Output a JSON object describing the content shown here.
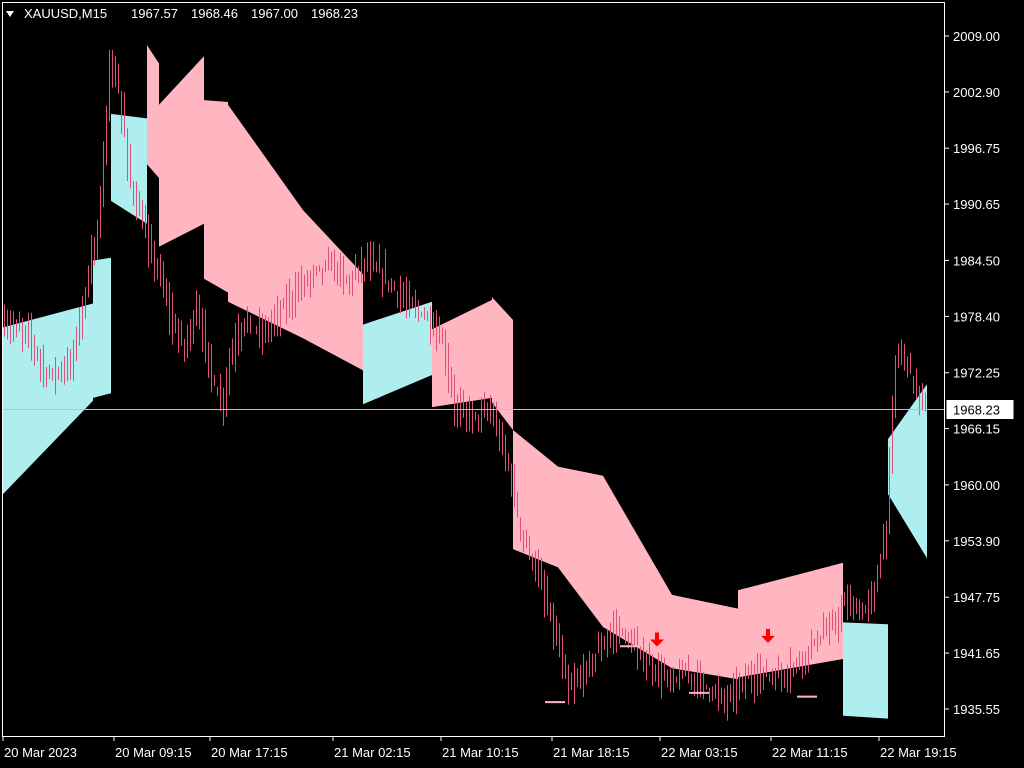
{
  "header": {
    "symbol": "XAUUSD,M15",
    "open": "1967.57",
    "high": "1968.46",
    "low": "1967.00",
    "close": "1968.23",
    "menu_icon": "triangle-down-icon"
  },
  "chart_data": {
    "type": "candlestick-with-band",
    "title": "",
    "xlabel": "",
    "ylabel": "",
    "ylim": [
      1932.6,
      2012.6
    ],
    "grid": false,
    "current_price": 1968.23,
    "current_price_label": "1968.23",
    "y_ticks": [
      "2009.00",
      "2002.90",
      "1996.75",
      "1990.65",
      "1984.50",
      "1978.40",
      "1972.25",
      "1966.15",
      "1960.00",
      "1953.90",
      "1947.75",
      "1941.65",
      "1935.55"
    ],
    "x_ticks": [
      "20 Mar 2023",
      "20 Mar 09:15",
      "20 Mar 17:15",
      "21 Mar 02:15",
      "21 Mar 10:15",
      "21 Mar 18:15",
      "22 Mar 03:15",
      "22 Mar 11:15",
      "22 Mar 19:15"
    ],
    "x_tick_index": [
      0,
      37,
      69,
      110,
      146,
      183,
      219,
      256,
      292
    ],
    "bar_count": 308,
    "colors": {
      "up_band": "#afeeee",
      "down_band": "#ffb6c1",
      "candle": "#e0507a",
      "signal": "#ff0000",
      "level": "#ffb6c1"
    },
    "band_segments": [
      {
        "trend": "up",
        "start": 0,
        "end": 30,
        "upper": [
          1977.2,
          1979.8
        ],
        "lower": [
          1959.0,
          1969.2
        ]
      },
      {
        "trend": "up",
        "start": 30,
        "end": 36,
        "upper": [
          1984.5,
          1984.8
        ],
        "lower": [
          1969.5,
          1970.0
        ]
      },
      {
        "trend": "up",
        "start": 36,
        "end": 48,
        "upper": [
          2000.5,
          2000.0
        ],
        "lower": [
          1991.0,
          1988.5
        ]
      },
      {
        "trend": "down",
        "start": 48,
        "end": 52,
        "upper": [
          2008.0,
          2006.0
        ],
        "lower": [
          1995.0,
          1993.5
        ]
      },
      {
        "trend": "down",
        "start": 52,
        "end": 67,
        "upper": [
          2001.5,
          2006.8
        ],
        "lower": [
          1986.0,
          1988.5
        ]
      },
      {
        "trend": "down",
        "start": 67,
        "end": 75,
        "upper": [
          2002.0,
          2001.8
        ],
        "lower": [
          1982.5,
          1981.0
        ]
      },
      {
        "trend": "down",
        "start": 75,
        "end": 100,
        "upper": [
          2001.5,
          1990.0
        ],
        "lower": [
          1980.0,
          1976.0
        ]
      },
      {
        "trend": "down",
        "start": 100,
        "end": 120,
        "upper": [
          1990.0,
          1983.0
        ],
        "lower": [
          1976.0,
          1972.5
        ]
      },
      {
        "trend": "up",
        "start": 120,
        "end": 143,
        "upper": [
          1977.5,
          1980.0
        ],
        "lower": [
          1968.8,
          1972.0
        ]
      },
      {
        "trend": "down",
        "start": 143,
        "end": 163,
        "upper": [
          1977.0,
          1980.2
        ],
        "lower": [
          1968.5,
          1969.5
        ]
      },
      {
        "trend": "down",
        "start": 163,
        "end": 170,
        "upper": [
          1980.5,
          1978.0
        ],
        "lower": [
          1969.0,
          1966.0
        ]
      },
      {
        "trend": "down",
        "start": 170,
        "end": 185,
        "upper": [
          1966.0,
          1962.0
        ],
        "lower": [
          1953.0,
          1951.0
        ]
      },
      {
        "trend": "down",
        "start": 185,
        "end": 200,
        "upper": [
          1962.0,
          1961.0
        ],
        "lower": [
          1951.0,
          1944.5
        ]
      },
      {
        "trend": "down",
        "start": 200,
        "end": 223,
        "upper": [
          1961.0,
          1948.0
        ],
        "lower": [
          1944.5,
          1940.0
        ]
      },
      {
        "trend": "down",
        "start": 223,
        "end": 245,
        "upper": [
          1948.0,
          1946.5
        ],
        "lower": [
          1940.0,
          1938.8
        ]
      },
      {
        "trend": "down",
        "start": 245,
        "end": 280,
        "upper": [
          1948.5,
          1951.5
        ],
        "lower": [
          1939.0,
          1941.0
        ]
      },
      {
        "trend": "up",
        "start": 280,
        "end": 295,
        "upper": [
          1945.0,
          1944.8
        ],
        "lower": [
          1934.8,
          1934.5
        ]
      },
      {
        "trend": "up",
        "start": 295,
        "end": 308,
        "upper": [
          1965.0,
          1971.0
        ],
        "lower": [
          1959.0,
          1952.0
        ]
      }
    ],
    "price_path": [
      [
        0,
        1977.5
      ],
      [
        8,
        1976.5
      ],
      [
        14,
        1972.0
      ],
      [
        22,
        1973.0
      ],
      [
        28,
        1983.0
      ],
      [
        32,
        1990.5
      ],
      [
        35,
        2006.0
      ],
      [
        38,
        2003.0
      ],
      [
        42,
        1993.0
      ],
      [
        47,
        1987.0
      ],
      [
        52,
        1982.5
      ],
      [
        56,
        1977.5
      ],
      [
        60,
        1975.0
      ],
      [
        64,
        1979.5
      ],
      [
        68,
        1973.5
      ],
      [
        72,
        1968.5
      ],
      [
        76,
        1975.0
      ],
      [
        80,
        1978.0
      ],
      [
        86,
        1976.5
      ],
      [
        92,
        1979.0
      ],
      [
        98,
        1981.5
      ],
      [
        104,
        1983.5
      ],
      [
        110,
        1984.0
      ],
      [
        114,
        1982.0
      ],
      [
        120,
        1984.5
      ],
      [
        126,
        1983.0
      ],
      [
        132,
        1980.5
      ],
      [
        140,
        1978.5
      ],
      [
        146,
        1975.5
      ],
      [
        150,
        1968.5
      ],
      [
        156,
        1967.5
      ],
      [
        162,
        1968.0
      ],
      [
        168,
        1962.0
      ],
      [
        172,
        1955.0
      ],
      [
        178,
        1950.0
      ],
      [
        184,
        1943.0
      ],
      [
        188,
        1937.5
      ],
      [
        192,
        1939.0
      ],
      [
        198,
        1942.0
      ],
      [
        204,
        1944.5
      ],
      [
        210,
        1942.0
      ],
      [
        216,
        1940.0
      ],
      [
        222,
        1938.5
      ],
      [
        228,
        1939.5
      ],
      [
        234,
        1938.0
      ],
      [
        240,
        1936.5
      ],
      [
        246,
        1938.5
      ],
      [
        252,
        1939.5
      ],
      [
        258,
        1939.0
      ],
      [
        264,
        1940.5
      ],
      [
        270,
        1943.0
      ],
      [
        276,
        1944.5
      ],
      [
        280,
        1947.0
      ],
      [
        286,
        1946.0
      ],
      [
        290,
        1948.5
      ],
      [
        294,
        1956.0
      ],
      [
        297,
        1974.0
      ],
      [
        300,
        1974.5
      ],
      [
        303,
        1971.0
      ],
      [
        307,
        1968.23
      ]
    ],
    "signals": [
      {
        "type": "sell",
        "index": 218,
        "price": 1942.8
      },
      {
        "type": "sell",
        "index": 255,
        "price": 1943.2
      }
    ],
    "levels": [
      {
        "index": 184,
        "price": 1936.3
      },
      {
        "index": 209,
        "price": 1942.4
      },
      {
        "index": 232,
        "price": 1937.3
      },
      {
        "index": 268,
        "price": 1936.9
      }
    ]
  }
}
